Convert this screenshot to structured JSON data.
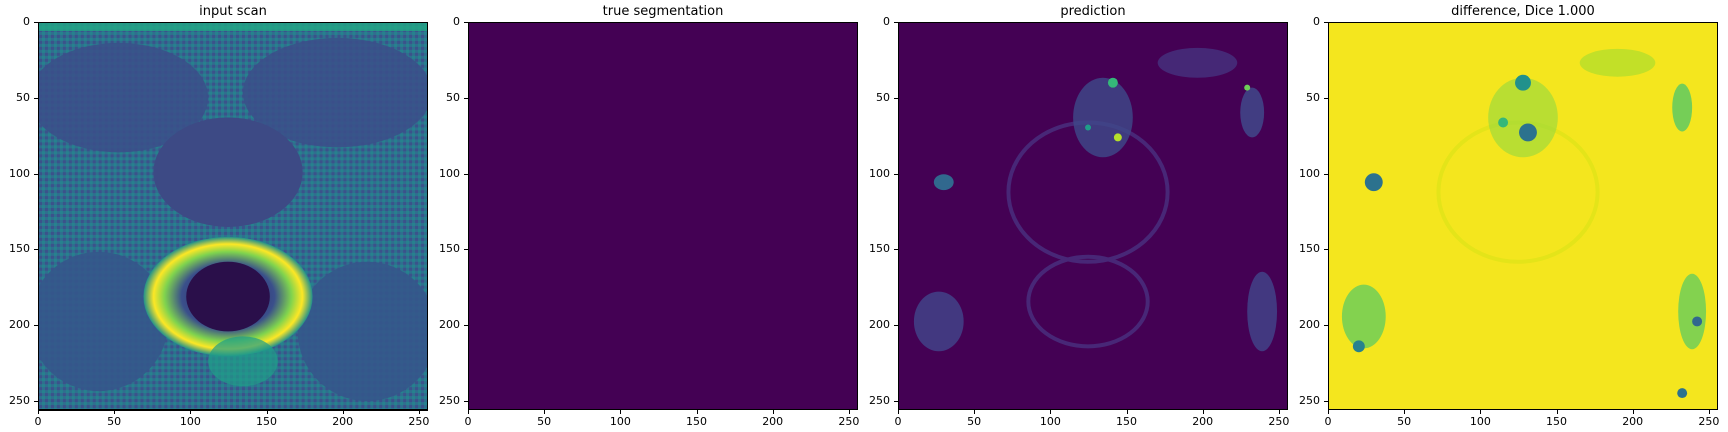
{
  "panels": [
    {
      "id": "input",
      "title": "input scan"
    },
    {
      "id": "truth",
      "title": "true segmentation"
    },
    {
      "id": "prediction",
      "title": "prediction"
    },
    {
      "id": "difference",
      "title": "difference, Dice 1.000"
    }
  ],
  "axis": {
    "x_ticks": [
      0,
      50,
      100,
      150,
      200,
      250
    ],
    "y_ticks": [
      0,
      50,
      100,
      150,
      200,
      250
    ],
    "range": [
      0,
      256
    ]
  },
  "colormap": {
    "low": "#440154",
    "mid": "#21918c",
    "high": "#fde725"
  }
}
